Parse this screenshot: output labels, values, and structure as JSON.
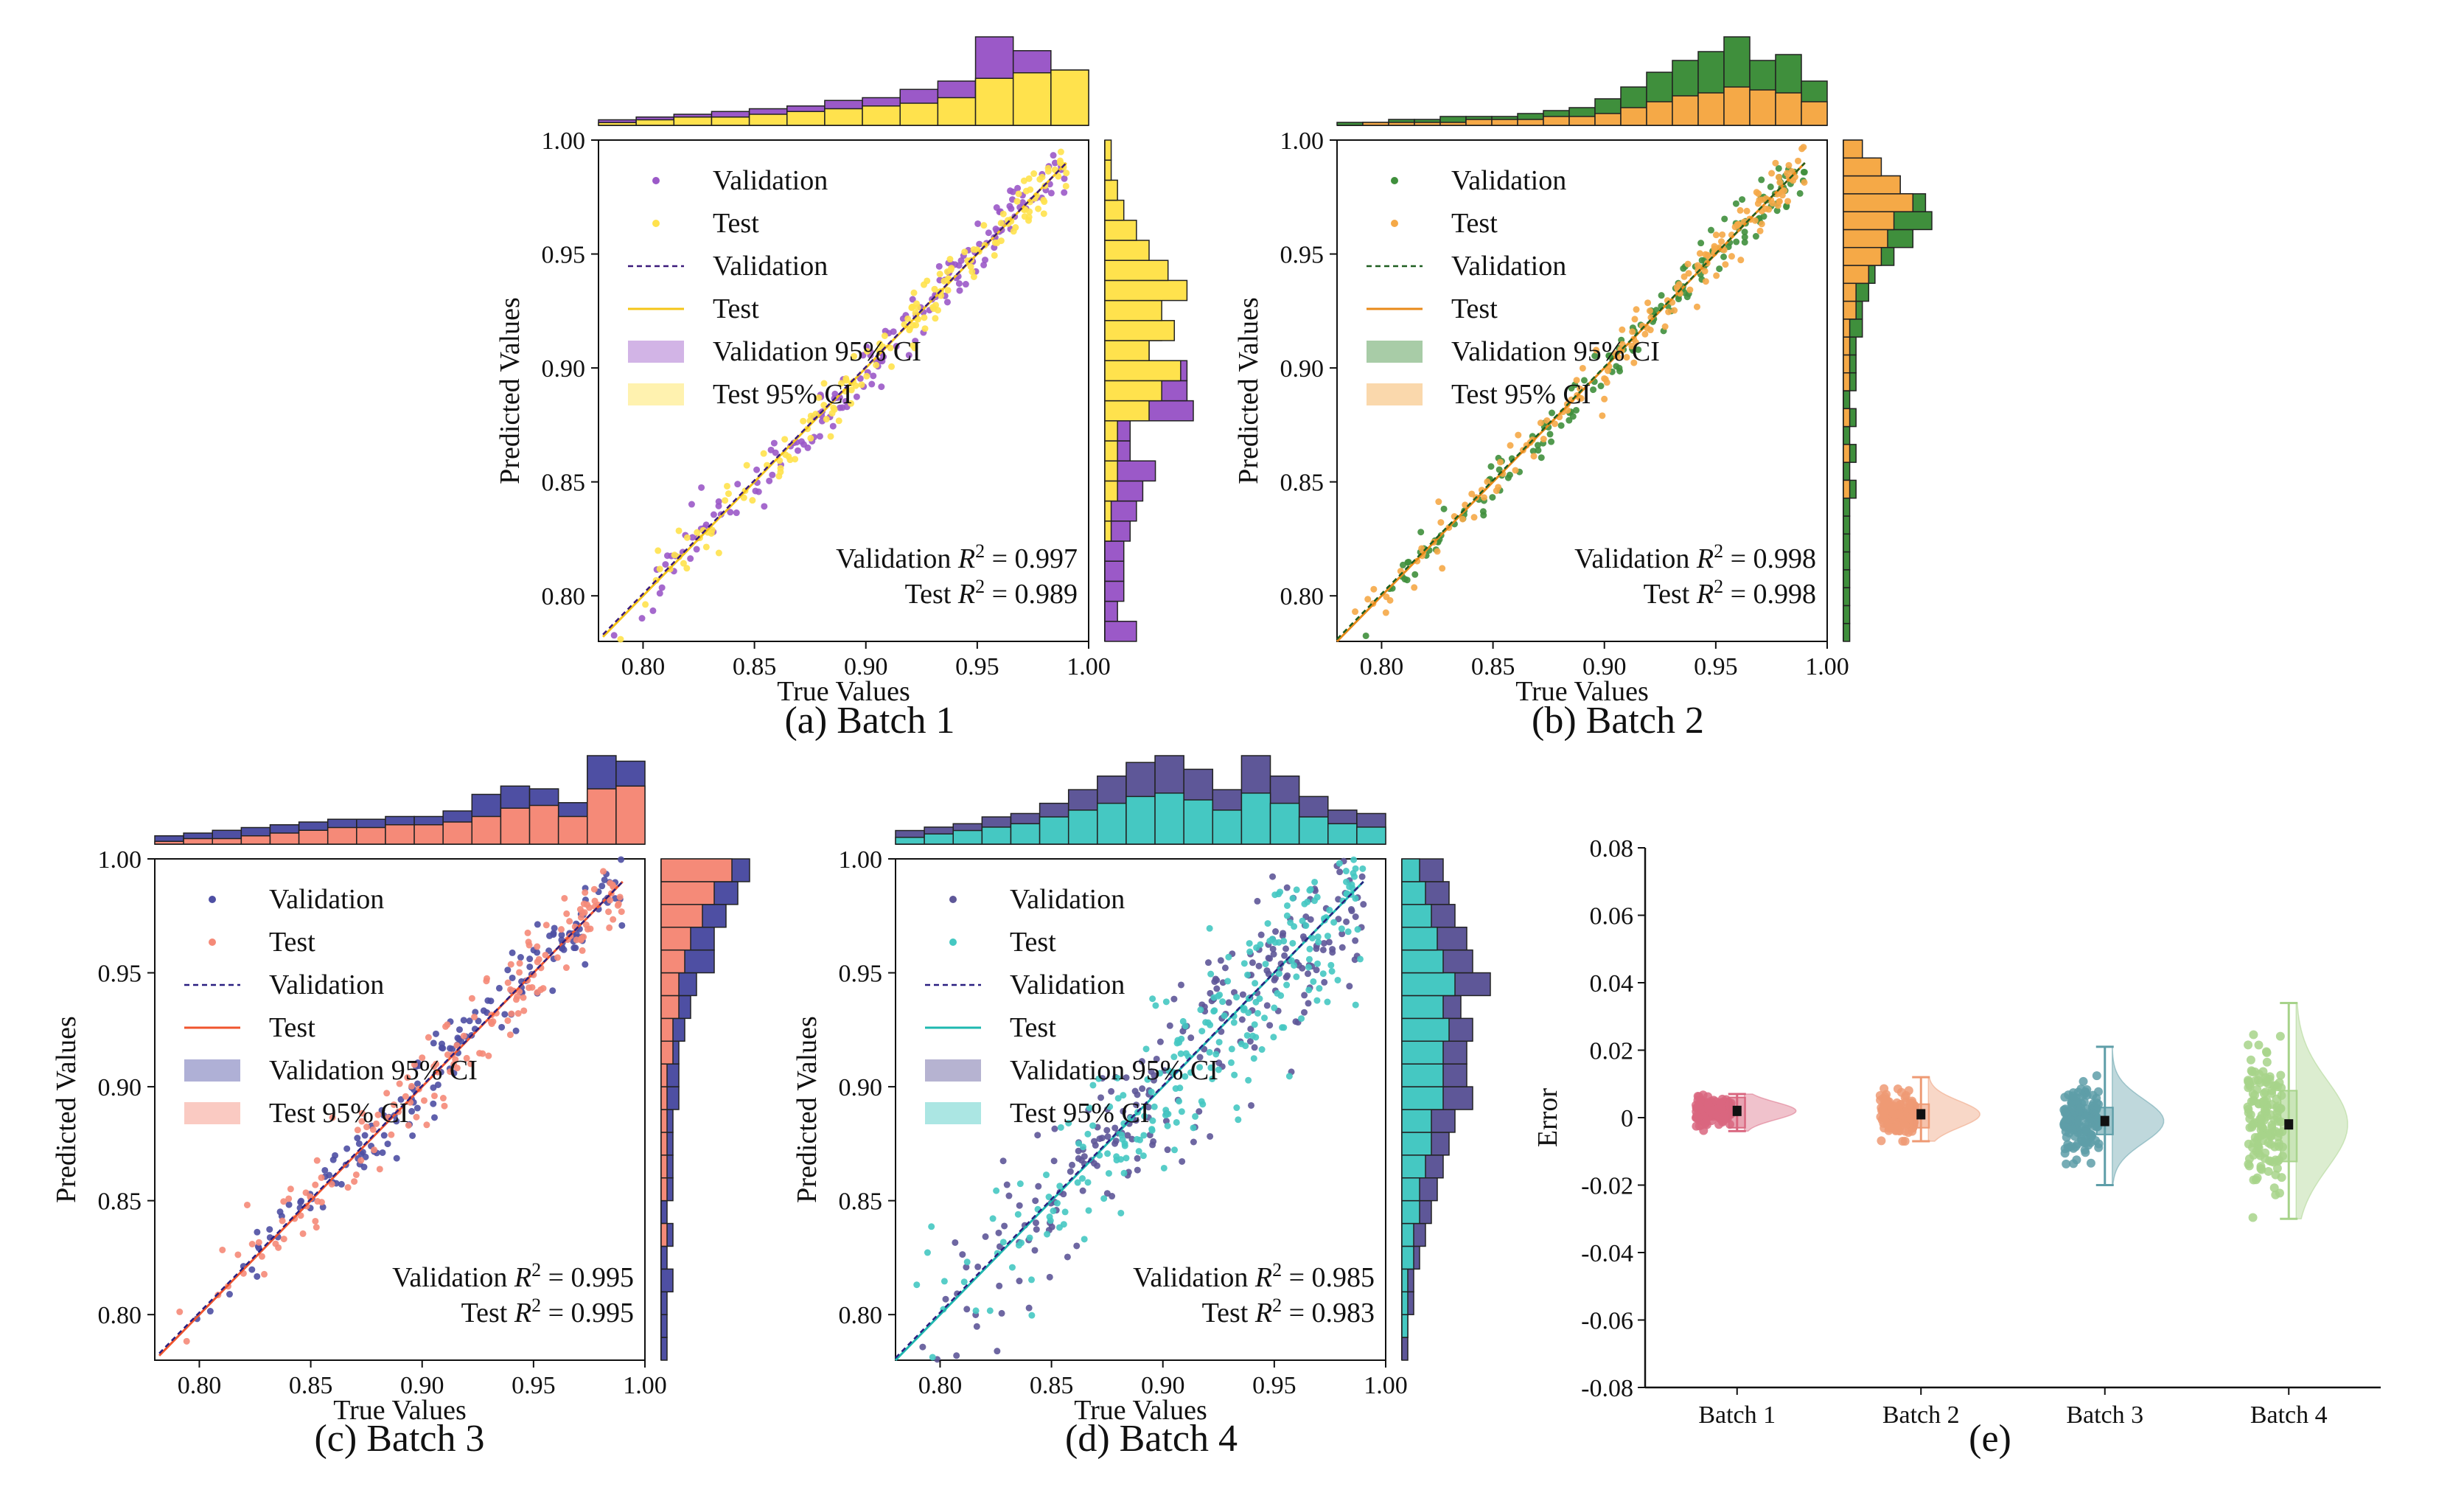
{
  "chart_data": [
    {
      "panel": "a",
      "type": "scatter",
      "caption": "(a) Batch 1",
      "title": "",
      "xlabel": "True Values",
      "ylabel": "Predicted Values",
      "xlim": [
        0.78,
        1.0
      ],
      "ylim": [
        0.78,
        1.0
      ],
      "xticks": [
        "0.80",
        "0.85",
        "0.90",
        "0.95",
        "1.00"
      ],
      "xtick_values": [
        0.8,
        0.85,
        0.9,
        0.95,
        1.0
      ],
      "yticks": [
        "0.80",
        "0.85",
        "0.90",
        "0.95",
        "1.00"
      ],
      "ytick_values": [
        0.8,
        0.85,
        0.9,
        0.95,
        1.0
      ],
      "colors": {
        "validation": "#9B59C8",
        "test": "#FFE24D",
        "val_line": "#3B1A7A",
        "test_line": "#F5C518"
      },
      "legend": [
        "Validation",
        "Test",
        "Validation",
        "Test",
        "Validation 95% CI",
        "Test 95% CI"
      ],
      "r2": {
        "validation_label": "Validation",
        "validation_value": "= 0.997",
        "test_label": "Test",
        "test_value": "= 0.989"
      },
      "spread": 0.006,
      "xmin": 0.785,
      "seed": 11,
      "hist_top": {
        "validation": [
          2,
          3,
          4,
          5,
          6,
          7,
          9,
          10,
          13,
          16,
          32,
          27,
          20
        ],
        "test": [
          1,
          2,
          3,
          3,
          4,
          5,
          6,
          7,
          8,
          10,
          17,
          19,
          20
        ]
      },
      "hist_right": {
        "validation": [
          5,
          2,
          3,
          3,
          3,
          4,
          5,
          6,
          8,
          4,
          4,
          14,
          13,
          13,
          7,
          9,
          6,
          4,
          3,
          2,
          1,
          0,
          1,
          0,
          0
        ],
        "test": [
          0,
          0,
          0,
          0,
          0,
          1,
          1,
          2,
          2,
          2,
          2,
          7,
          9,
          12,
          7,
          11,
          9,
          13,
          10,
          7,
          5,
          3,
          2,
          1,
          1
        ]
      }
    },
    {
      "panel": "b",
      "type": "scatter",
      "caption": "(b) Batch 2",
      "title": "",
      "xlabel": "True Values",
      "ylabel": "Predicted Values",
      "xlim": [
        0.78,
        1.0
      ],
      "ylim": [
        0.78,
        1.0
      ],
      "xticks": [
        "0.80",
        "0.85",
        "0.90",
        "0.95",
        "1.00"
      ],
      "xtick_values": [
        0.8,
        0.85,
        0.9,
        0.95,
        1.0
      ],
      "yticks": [
        "0.80",
        "0.85",
        "0.90",
        "0.95",
        "1.00"
      ],
      "ytick_values": [
        0.8,
        0.85,
        0.9,
        0.95,
        1.0
      ],
      "colors": {
        "validation": "#3F8F3C",
        "test": "#F5A947",
        "val_line": "#1F5E20",
        "test_line": "#E88A1A"
      },
      "legend": [
        "Validation",
        "Test",
        "Validation",
        "Test",
        "Validation 95% CI",
        "Test 95% CI"
      ],
      "r2": {
        "validation_label": "Validation",
        "validation_value": "= 0.998",
        "test_label": "Test",
        "test_value": "= 0.998"
      },
      "spread": 0.005,
      "xmin": 0.78,
      "seed": 23,
      "hist_top": {
        "validation": [
          1,
          1,
          2,
          2,
          3,
          3,
          3,
          4,
          5,
          6,
          9,
          13,
          18,
          22,
          25,
          30,
          22,
          24,
          15
        ],
        "test": [
          0,
          1,
          1,
          1,
          1,
          2,
          2,
          2,
          3,
          3,
          4,
          6,
          8,
          10,
          11,
          13,
          12,
          11,
          8
        ]
      },
      "hist_right": {
        "validation": [
          1,
          1,
          1,
          1,
          1,
          1,
          1,
          1,
          2,
          1,
          2,
          1,
          2,
          1,
          2,
          2,
          2,
          3,
          3,
          4,
          5,
          8,
          11,
          14,
          13,
          9,
          5,
          3
        ],
        "test": [
          0,
          0,
          0,
          0,
          0,
          0,
          0,
          0,
          1,
          0,
          1,
          0,
          1,
          0,
          1,
          1,
          1,
          1,
          2,
          2,
          4,
          6,
          7,
          8,
          11,
          9,
          6,
          3
        ]
      }
    },
    {
      "panel": "c",
      "type": "scatter",
      "caption": "(c) Batch 3",
      "title": "",
      "xlabel": "True Values",
      "ylabel": "Predicted Values",
      "xlim": [
        0.78,
        1.0
      ],
      "ylim": [
        0.78,
        1.0
      ],
      "xticks": [
        "0.80",
        "0.85",
        "0.90",
        "0.95",
        "1.00"
      ],
      "xtick_values": [
        0.8,
        0.85,
        0.9,
        0.95,
        1.0
      ],
      "yticks": [
        "0.80",
        "0.85",
        "0.90",
        "0.95",
        "1.00"
      ],
      "ytick_values": [
        0.8,
        0.85,
        0.9,
        0.95,
        1.0
      ],
      "colors": {
        "validation": "#4E4FA3",
        "test": "#F58A78",
        "val_line": "#2A1F80",
        "test_line": "#F0552E"
      },
      "legend": [
        "Validation",
        "Test",
        "Validation",
        "Test",
        "Validation 95% CI",
        "Test 95% CI"
      ],
      "r2": {
        "validation_label": "Validation",
        "validation_value": "= 0.995",
        "test_label": "Test",
        "test_value": "= 0.995"
      },
      "spread": 0.008,
      "xmin": 0.785,
      "seed": 37,
      "hist_top": {
        "validation": [
          3,
          4,
          5,
          6,
          7,
          8,
          9,
          9,
          10,
          10,
          12,
          18,
          21,
          20,
          15,
          32,
          30
        ],
        "test": [
          1,
          2,
          2,
          3,
          4,
          5,
          6,
          6,
          7,
          7,
          8,
          10,
          13,
          14,
          10,
          20,
          21
        ]
      },
      "hist_right": {
        "validation": [
          1,
          1,
          1,
          2,
          1,
          2,
          1,
          2,
          2,
          2,
          2,
          3,
          3,
          3,
          4,
          5,
          6,
          9,
          9,
          11,
          13,
          15
        ],
        "test": [
          0,
          0,
          0,
          0,
          0,
          1,
          0,
          1,
          1,
          1,
          1,
          1,
          1,
          2,
          2,
          3,
          3,
          4,
          5,
          7,
          9,
          12
        ]
      }
    },
    {
      "panel": "d",
      "type": "scatter",
      "caption": "(d) Batch 4",
      "title": "",
      "xlabel": "True Values",
      "ylabel": "Predicted Values",
      "xlim": [
        0.78,
        1.0
      ],
      "ylim": [
        0.78,
        1.0
      ],
      "xticks": [
        "0.80",
        "0.85",
        "0.90",
        "0.95",
        "1.00"
      ],
      "xtick_values": [
        0.8,
        0.85,
        0.9,
        0.95,
        1.0
      ],
      "yticks": [
        "0.80",
        "0.85",
        "0.90",
        "0.95",
        "1.00"
      ],
      "ytick_values": [
        0.8,
        0.85,
        0.9,
        0.95,
        1.0
      ],
      "colors": {
        "validation": "#5E5798",
        "test": "#45C8C2",
        "val_line": "#2A1F80",
        "test_line": "#1FB8B0"
      },
      "legend": [
        "Validation",
        "Test",
        "Validation",
        "Test",
        "Validation 95% CI",
        "Test 95% CI"
      ],
      "r2": {
        "validation_label": "Validation",
        "validation_value": "= 0.985",
        "test_label": "Test",
        "test_value": "= 0.983"
      },
      "spread": 0.018,
      "xmin": 0.78,
      "seed": 53,
      "hist_top": {
        "validation": [
          4,
          5,
          6,
          8,
          9,
          12,
          16,
          20,
          24,
          26,
          22,
          16,
          26,
          20,
          14,
          10,
          9
        ],
        "test": [
          2,
          3,
          4,
          5,
          6,
          8,
          10,
          12,
          14,
          15,
          13,
          10,
          15,
          12,
          8,
          6,
          5
        ]
      },
      "hist_right": {
        "validation": [
          1,
          1,
          2,
          2,
          3,
          4,
          5,
          6,
          7,
          8,
          9,
          12,
          11,
          11,
          12,
          10,
          15,
          12,
          11,
          9,
          8,
          7
        ],
        "test": [
          0,
          1,
          1,
          1,
          2,
          2,
          3,
          3,
          4,
          5,
          5,
          7,
          7,
          7,
          8,
          7,
          9,
          7,
          6,
          5,
          4,
          3
        ]
      }
    },
    {
      "panel": "e",
      "type": "raincloud",
      "caption": "(e)",
      "title": "",
      "xlabel": "",
      "ylabel": "Error",
      "ylim": [
        -0.08,
        0.08
      ],
      "yticks": [
        "0.08",
        "0.06",
        "0.04",
        "0.02",
        "0",
        "-0.02",
        "-0.04",
        "-0.06",
        "-0.08"
      ],
      "ytick_values": [
        0.08,
        0.06,
        0.04,
        0.02,
        0,
        -0.02,
        -0.04,
        -0.06,
        -0.08
      ],
      "categories": [
        "Batch 1",
        "Batch 2",
        "Batch 3",
        "Batch 4"
      ],
      "colors": [
        "#D9667F",
        "#EE9A74",
        "#5E9EA8",
        "#A7D38A"
      ],
      "series": [
        {
          "name": "Batch 1",
          "mean": 0.002,
          "ci_low": -0.003,
          "ci_high": 0.006,
          "whisker_low": -0.004,
          "whisker_high": 0.007,
          "spread": 0.002,
          "seed": 5
        },
        {
          "name": "Batch 2",
          "mean": 0.001,
          "ci_low": -0.003,
          "ci_high": 0.004,
          "whisker_low": -0.007,
          "whisker_high": 0.012,
          "spread": 0.003,
          "seed": 9
        },
        {
          "name": "Batch 3",
          "mean": -0.001,
          "ci_low": -0.005,
          "ci_high": 0.003,
          "whisker_low": -0.02,
          "whisker_high": 0.021,
          "spread": 0.005,
          "seed": 13
        },
        {
          "name": "Batch 4",
          "mean": -0.002,
          "ci_low": -0.013,
          "ci_high": 0.008,
          "whisker_low": -0.03,
          "whisker_high": 0.034,
          "spread": 0.01,
          "seed": 17
        }
      ]
    }
  ]
}
